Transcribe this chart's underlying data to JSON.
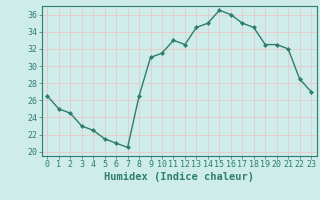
{
  "x": [
    0,
    1,
    2,
    3,
    4,
    5,
    6,
    7,
    8,
    9,
    10,
    11,
    12,
    13,
    14,
    15,
    16,
    17,
    18,
    19,
    20,
    21,
    22,
    23
  ],
  "y": [
    26.5,
    25.0,
    24.5,
    23.0,
    22.5,
    21.5,
    21.0,
    20.5,
    26.5,
    31.0,
    31.5,
    33.0,
    32.5,
    34.5,
    35.0,
    36.5,
    36.0,
    35.0,
    34.5,
    32.5,
    32.5,
    32.0,
    28.5,
    27.0
  ],
  "line_color": "#2e7d6e",
  "bg_color": "#ceecea",
  "grid_color": "#e8c8c8",
  "xlabel": "Humidex (Indice chaleur)",
  "ylim": [
    19.5,
    37.0
  ],
  "xlim": [
    -0.5,
    23.5
  ],
  "yticks": [
    20,
    22,
    24,
    26,
    28,
    30,
    32,
    34,
    36
  ],
  "xticks": [
    0,
    1,
    2,
    3,
    4,
    5,
    6,
    7,
    8,
    9,
    10,
    11,
    12,
    13,
    14,
    15,
    16,
    17,
    18,
    19,
    20,
    21,
    22,
    23
  ],
  "marker": "D",
  "markersize": 2.0,
  "linewidth": 1.0,
  "xlabel_fontsize": 7.5,
  "tick_fontsize": 6.0
}
